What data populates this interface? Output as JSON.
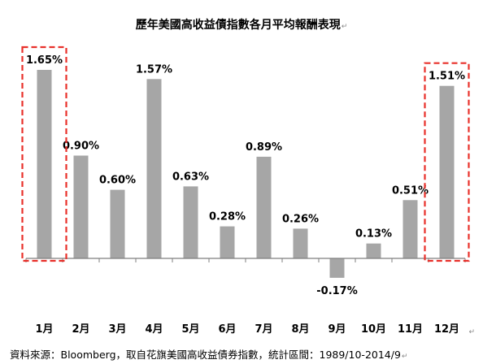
{
  "chart_data": {
    "type": "bar",
    "title": "歷年美國高收益債指數各月平均報酬表現",
    "categories": [
      "1月",
      "2月",
      "3月",
      "4月",
      "5月",
      "6月",
      "7月",
      "8月",
      "9月",
      "10月",
      "11月",
      "12月"
    ],
    "values": [
      1.65,
      0.9,
      0.6,
      1.57,
      0.63,
      0.28,
      0.89,
      0.26,
      -0.17,
      0.13,
      0.51,
      1.51
    ],
    "value_labels": [
      "1.65%",
      "0.90%",
      "0.60%",
      "1.57%",
      "0.63%",
      "0.28%",
      "0.89%",
      "0.26%",
      "-0.17%",
      "0.13%",
      "0.51%",
      "1.51%"
    ],
    "unit": "%",
    "ylim": [
      -0.2,
      1.75
    ],
    "grid": false,
    "bar_color": "#a6a6a6",
    "highlight_color": "#e8302a",
    "highlighted_categories": [
      "1月",
      "12月"
    ]
  },
  "source": "資料來源：Bloomberg，取自花旗美國高收益債券指數，統計區間：1989/10-2014/9",
  "return_mark": "↵",
  "colors": {
    "axis": "#7f7f7f",
    "text": "#000000"
  }
}
